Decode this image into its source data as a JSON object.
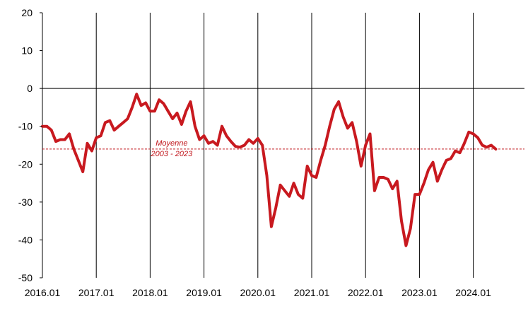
{
  "chart_data": {
    "type": "line",
    "title": "",
    "xlabel": "",
    "ylabel": "",
    "x_tick_labels": [
      "2016.01",
      "2017.01",
      "2018.01",
      "2019.01",
      "2020.01",
      "2021.01",
      "2022.01",
      "2023.01",
      "2024.01"
    ],
    "ylim": [
      -50,
      20
    ],
    "yticks": [
      20,
      10,
      0,
      -10,
      -20,
      -30,
      -40,
      -50
    ],
    "grid": "vertical lines at each January",
    "line_color": "#c8191f",
    "average": {
      "value": -16,
      "label_line1": "Moyenne",
      "label_line2": "2003 - 2023",
      "color": "#c0151b"
    },
    "series": [
      {
        "x": [
          "2016.01",
          "2016.02",
          "2016.03",
          "2016.04",
          "2016.05",
          "2016.06",
          "2016.07",
          "2016.08",
          "2016.09",
          "2016.10",
          "2016.11",
          "2016.12",
          "2017.01",
          "2017.02",
          "2017.03",
          "2017.04",
          "2017.05",
          "2017.06",
          "2017.07",
          "2017.08",
          "2017.09",
          "2017.10",
          "2017.11",
          "2017.12",
          "2018.01",
          "2018.02",
          "2018.03",
          "2018.04",
          "2018.05",
          "2018.06",
          "2018.07",
          "2018.08",
          "2018.09",
          "2018.10",
          "2018.11",
          "2018.12",
          "2019.01",
          "2019.02",
          "2019.03",
          "2019.04",
          "2019.05",
          "2019.06",
          "2019.07",
          "2019.08",
          "2019.09",
          "2019.10",
          "2019.11",
          "2019.12",
          "2020.01",
          "2020.02",
          "2020.03",
          "2020.04",
          "2020.05",
          "2020.06",
          "2020.07",
          "2020.08",
          "2020.09",
          "2020.10",
          "2020.11",
          "2020.12",
          "2021.01",
          "2021.02",
          "2021.03",
          "2021.04",
          "2021.05",
          "2021.06",
          "2021.07",
          "2021.08",
          "2021.09",
          "2021.10",
          "2021.11",
          "2021.12",
          "2022.01",
          "2022.02",
          "2022.03",
          "2022.04",
          "2022.05",
          "2022.06",
          "2022.07",
          "2022.08",
          "2022.09",
          "2022.10",
          "2022.11",
          "2022.12",
          "2023.01",
          "2023.02",
          "2023.03",
          "2023.04",
          "2023.05",
          "2023.06",
          "2023.07",
          "2023.08",
          "2023.09",
          "2023.10",
          "2023.11",
          "2023.12",
          "2024.01",
          "2024.02",
          "2024.03",
          "2024.04",
          "2024.05",
          "2024.06"
        ],
        "values": [
          -10,
          -10,
          -11,
          -14,
          -13.5,
          -13.5,
          -12,
          -16,
          -19,
          -22,
          -14.5,
          -16.5,
          -13,
          -12.5,
          -9,
          -8.5,
          -11,
          -10,
          -9,
          -8,
          -5,
          -1.5,
          -4.5,
          -3.8,
          -6,
          -6,
          -3,
          -4,
          -6,
          -8,
          -6.5,
          -9.5,
          -6,
          -3.5,
          -10,
          -13.5,
          -12.5,
          -14.5,
          -14,
          -15,
          -10,
          -12.5,
          -14,
          -15.3,
          -15.5,
          -15,
          -13.5,
          -14.5,
          -13.2,
          -15,
          -23,
          -36.5,
          -31.5,
          -25.5,
          -27,
          -28.5,
          -25,
          -28,
          -29,
          -20.5,
          -23,
          -23.5,
          -19,
          -15,
          -10,
          -5.5,
          -3.5,
          -7.5,
          -10.5,
          -9,
          -14,
          -20.5,
          -15,
          -12,
          -27,
          -23.5,
          -23.5,
          -24,
          -26.5,
          -24.5,
          -35,
          -41.5,
          -37,
          -28,
          -28,
          -25,
          -21.5,
          -19.5,
          -24.5,
          -21.5,
          -19,
          -18.5,
          -16.5,
          -17,
          -14.5,
          -11.5,
          -12,
          -13,
          -15,
          -15.5,
          -15,
          -16
        ]
      }
    ]
  }
}
